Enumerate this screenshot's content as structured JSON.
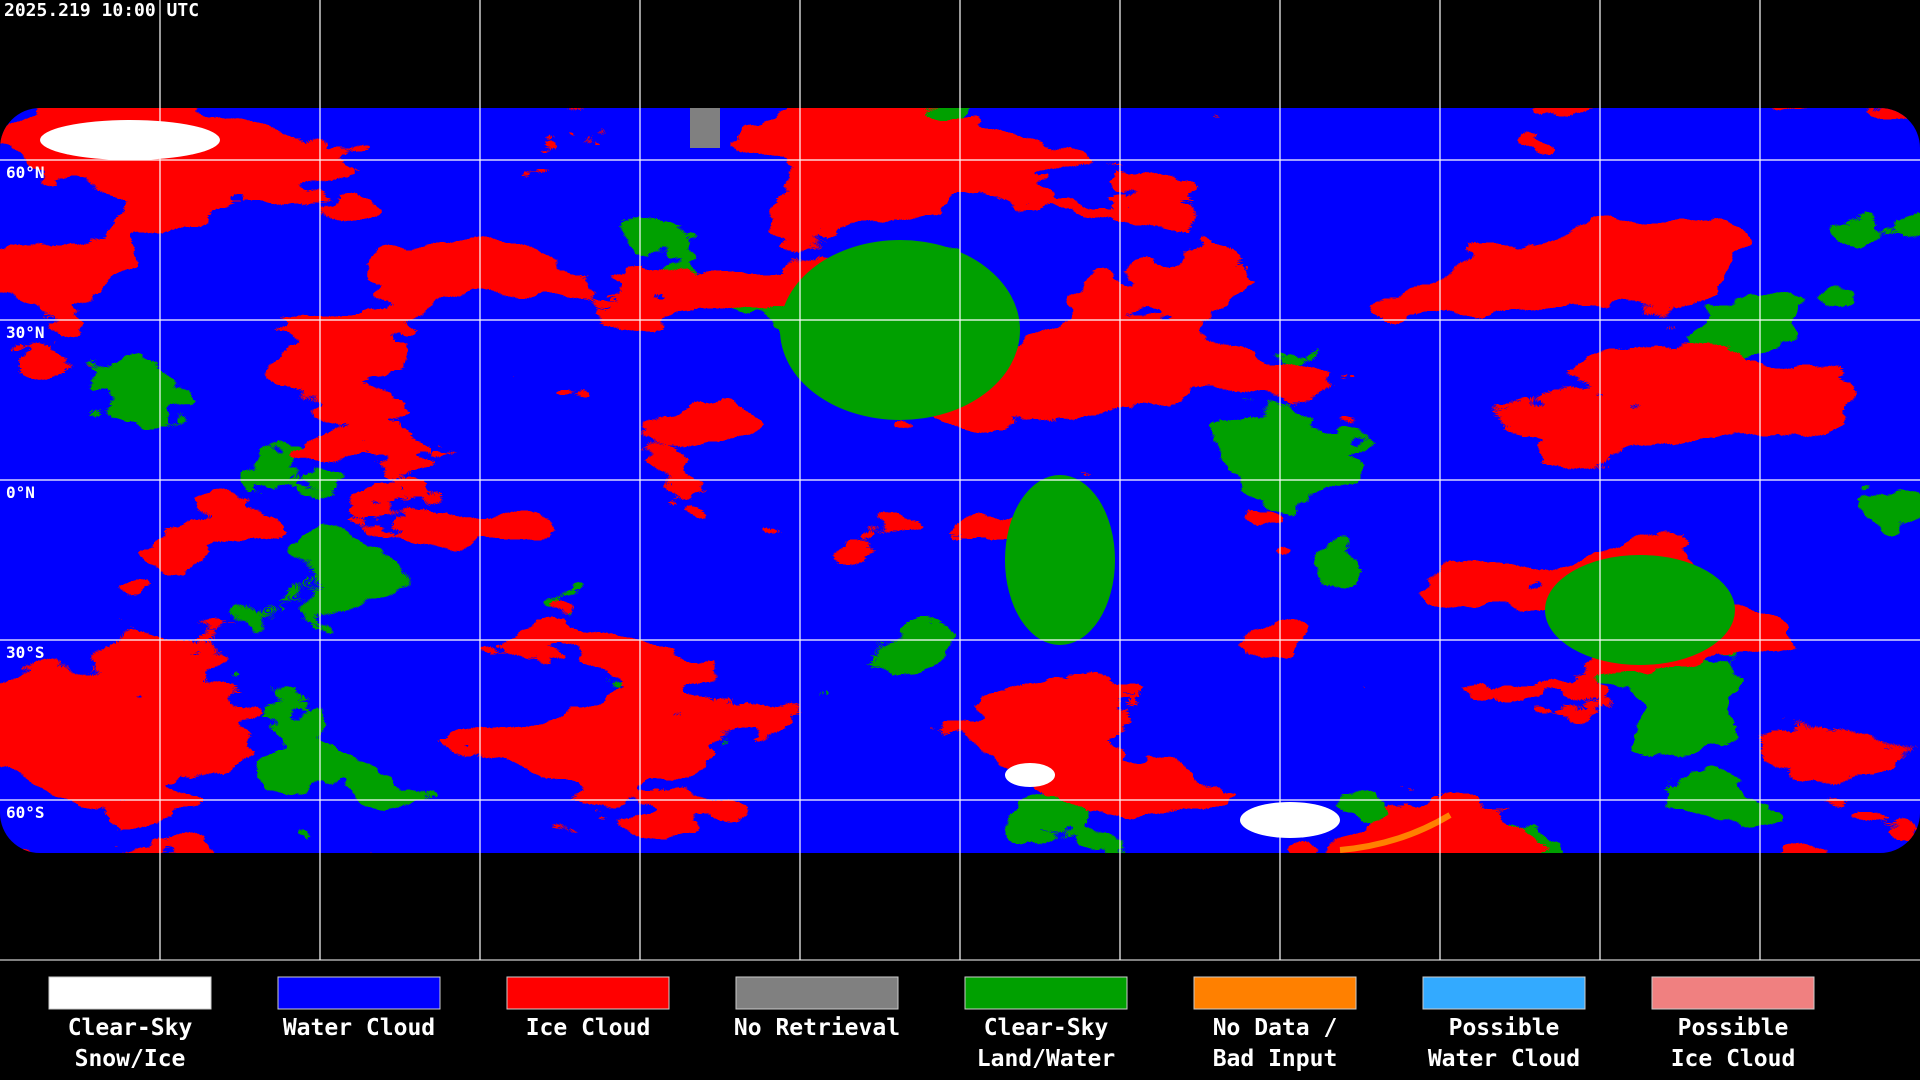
{
  "header": {
    "timestamp": "2025.219 10:00 UTC"
  },
  "map": {
    "latitude_labels": [
      "60°N",
      "30°N",
      "0°N",
      "30°S",
      "60°S"
    ]
  },
  "legend": [
    {
      "color": "#ffffff",
      "label": [
        "Clear-Sky",
        "Snow/Ice"
      ]
    },
    {
      "color": "#0000ff",
      "label": [
        "Water Cloud"
      ]
    },
    {
      "color": "#ff0000",
      "label": [
        "Ice Cloud"
      ]
    },
    {
      "color": "#808080",
      "label": [
        "No Retrieval"
      ]
    },
    {
      "color": "#00a000",
      "label": [
        "Clear-Sky",
        "Land/Water"
      ]
    },
    {
      "color": "#ff8000",
      "label": [
        "No Data /",
        "Bad Input"
      ]
    },
    {
      "color": "#33aaff",
      "label": [
        "Possible",
        "Water Cloud"
      ]
    },
    {
      "color": "#f08080",
      "label": [
        "Possible",
        "Ice Cloud"
      ]
    }
  ]
}
